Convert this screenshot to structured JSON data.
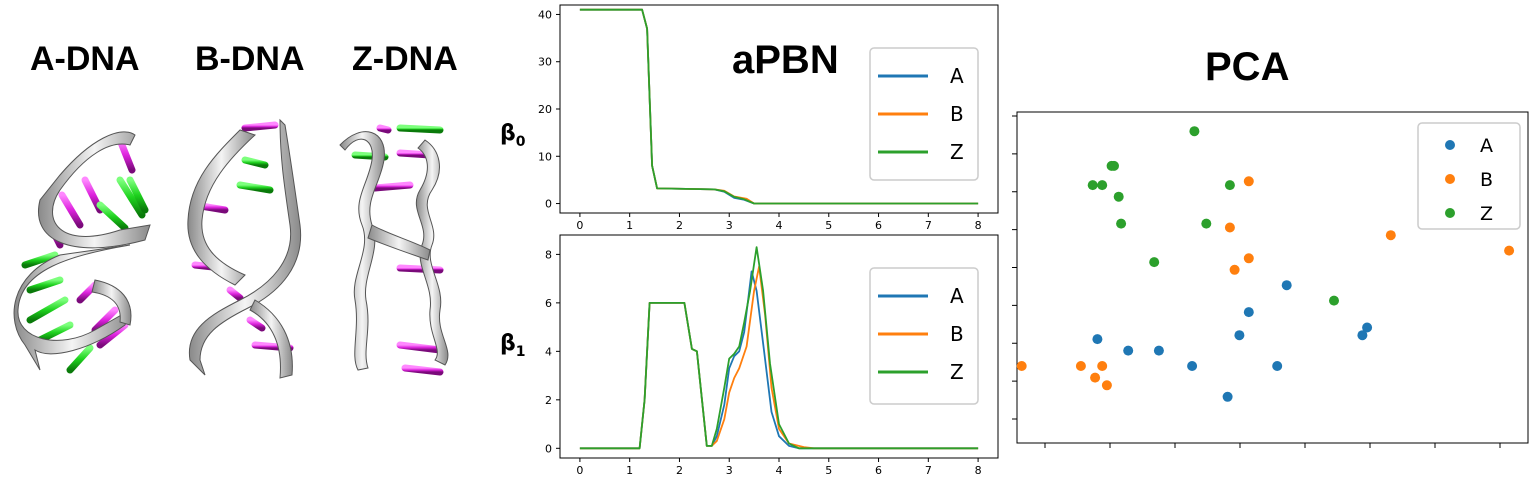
{
  "panels": {
    "dna_titles": [
      "A-DNA",
      "B-DNA",
      "Z-DNA"
    ],
    "apbn_title": "aPBN",
    "pca_title": "PCA"
  },
  "colors": {
    "A": "#1f77b4",
    "B": "#ff7f0e",
    "Z": "#2ca02c",
    "helix_ribbon": "#c8c8c8",
    "base_green": "#22dd22",
    "base_magenta": "#dd22dd"
  },
  "chart_data": [
    {
      "type": "line",
      "ylabel": "β0",
      "xlim": [
        -0.4,
        8.4
      ],
      "ylim": [
        -2,
        42
      ],
      "xticks": [
        "0",
        "1",
        "2",
        "3",
        "4",
        "5",
        "6",
        "7",
        "8"
      ],
      "yticks": [
        "0",
        "10",
        "20",
        "30",
        "40"
      ],
      "legend": "top-right",
      "series": [
        {
          "name": "A",
          "x": [
            0,
            1.25,
            1.35,
            1.45,
            1.55,
            2.7,
            2.9,
            3.1,
            3.3,
            3.5,
            8
          ],
          "y": [
            41,
            41,
            37,
            8,
            3.2,
            3,
            2.5,
            1.2,
            0.8,
            0,
            0
          ]
        },
        {
          "name": "B",
          "x": [
            0,
            1.25,
            1.35,
            1.45,
            1.55,
            2.7,
            2.9,
            3.1,
            3.35,
            3.5,
            8
          ],
          "y": [
            41,
            41,
            37,
            8,
            3.2,
            3,
            2.7,
            1.5,
            1,
            0,
            0
          ]
        },
        {
          "name": "Z",
          "x": [
            0,
            1.25,
            1.35,
            1.45,
            1.55,
            2.7,
            2.9,
            3.1,
            3.3,
            3.5,
            8
          ],
          "y": [
            41,
            41,
            37,
            8,
            3.2,
            3,
            2.6,
            1.4,
            0.9,
            0,
            0
          ]
        }
      ]
    },
    {
      "type": "line",
      "ylabel": "β1",
      "xlim": [
        -0.4,
        8.4
      ],
      "ylim": [
        -0.4,
        8.8
      ],
      "xticks": [
        "0",
        "1",
        "2",
        "3",
        "4",
        "5",
        "6",
        "7",
        "8"
      ],
      "yticks": [
        "0",
        "2",
        "4",
        "6",
        "8"
      ],
      "legend": "top-right",
      "series": [
        {
          "name": "A",
          "x": [
            0,
            1.2,
            1.3,
            1.4,
            2.1,
            2.25,
            2.35,
            2.55,
            2.65,
            2.75,
            2.9,
            3.0,
            3.1,
            3.2,
            3.3,
            3.45,
            3.55,
            3.7,
            3.85,
            4.0,
            4.2,
            4.4,
            8
          ],
          "y": [
            0,
            0,
            2,
            6,
            6,
            4.1,
            4,
            0.1,
            0.1,
            0.5,
            1.8,
            3.3,
            3.8,
            4,
            4.8,
            7.3,
            6.5,
            4,
            1.5,
            0.5,
            0.1,
            0,
            0
          ]
        },
        {
          "name": "B",
          "x": [
            0,
            1.2,
            1.3,
            1.4,
            2.1,
            2.25,
            2.35,
            2.55,
            2.65,
            2.75,
            2.9,
            3.0,
            3.1,
            3.2,
            3.35,
            3.5,
            3.6,
            3.72,
            3.85,
            4.0,
            4.2,
            4.5,
            4.7,
            8
          ],
          "y": [
            0,
            0,
            2,
            6,
            6,
            4.1,
            4,
            0.1,
            0.1,
            0.3,
            1.2,
            2.3,
            2.9,
            3.3,
            4.2,
            6.5,
            7.5,
            5.5,
            2.5,
            0.8,
            0.2,
            0.05,
            0,
            0
          ]
        },
        {
          "name": "Z",
          "x": [
            0,
            1.2,
            1.3,
            1.4,
            2.1,
            2.25,
            2.35,
            2.55,
            2.65,
            2.75,
            2.9,
            3.0,
            3.1,
            3.2,
            3.3,
            3.42,
            3.55,
            3.68,
            3.82,
            4.0,
            4.2,
            4.4,
            8
          ],
          "y": [
            0,
            0,
            2,
            6,
            6,
            4.1,
            4,
            0.1,
            0.1,
            0.8,
            2.5,
            3.7,
            3.9,
            4.2,
            5.2,
            6.5,
            8.3,
            6.5,
            3.5,
            1,
            0.2,
            0,
            0
          ]
        }
      ]
    },
    {
      "type": "scatter",
      "xlim": [
        -2.4,
        8.4
      ],
      "ylim": [
        -1.2,
        7.4
      ],
      "xticks": [
        "",
        "",
        "",
        "",
        "",
        "",
        "",
        ""
      ],
      "yticks": [
        "",
        "",
        "",
        "",
        "",
        "",
        "",
        "",
        ""
      ],
      "legend": "top-right",
      "series": [
        {
          "name": "A",
          "points": [
            [
              -0.7,
              1.5
            ],
            [
              -0.05,
              1.2
            ],
            [
              0.6,
              1.2
            ],
            [
              1.3,
              0.8
            ],
            [
              2.05,
              0
            ],
            [
              2.3,
              1.6
            ],
            [
              2.5,
              2.2
            ],
            [
              3.1,
              0.8
            ],
            [
              3.3,
              2.9
            ],
            [
              4.9,
              1.6
            ],
            [
              5.0,
              1.8
            ]
          ]
        },
        {
          "name": "B",
          "points": [
            [
              -2.3,
              0.8
            ],
            [
              -1.05,
              0.8
            ],
            [
              -0.6,
              0.8
            ],
            [
              -0.75,
              0.5
            ],
            [
              -0.5,
              0.3
            ],
            [
              2.2,
              3.3
            ],
            [
              2.1,
              4.4
            ],
            [
              2.5,
              3.6
            ],
            [
              2.5,
              5.6
            ],
            [
              5.5,
              4.2
            ],
            [
              8.0,
              3.8
            ]
          ]
        },
        {
          "name": "Z",
          "points": [
            [
              -0.8,
              5.5
            ],
            [
              -0.6,
              5.5
            ],
            [
              -0.4,
              6.0
            ],
            [
              -0.35,
              6.0
            ],
            [
              -0.25,
              5.2
            ],
            [
              -0.2,
              4.5
            ],
            [
              0.5,
              3.5
            ],
            [
              1.35,
              6.9
            ],
            [
              1.6,
              4.5
            ],
            [
              2.1,
              5.5
            ],
            [
              4.3,
              2.5
            ]
          ]
        }
      ]
    }
  ]
}
